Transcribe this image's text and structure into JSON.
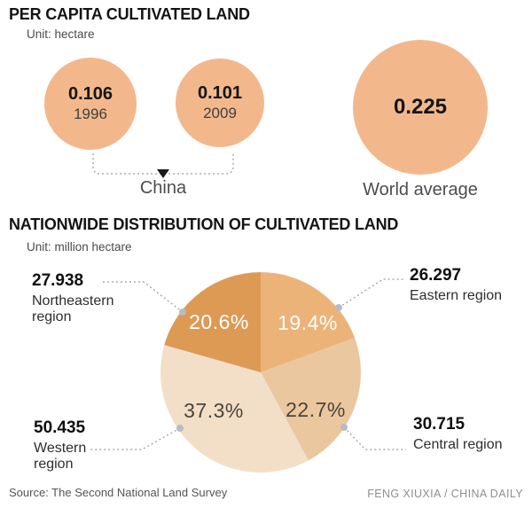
{
  "section1": {
    "title": "PER CAPITA CULTIVATED LAND",
    "unit": "Unit: hectare",
    "china_label": "China",
    "world_label": "World average",
    "circle_color": "#f2b88c",
    "bubbles": [
      {
        "value": "0.106",
        "year": "1996"
      },
      {
        "value": "0.101",
        "year": "2009"
      },
      {
        "value": "0.225",
        "year": ""
      }
    ]
  },
  "section2": {
    "title": "NATIONWIDE DISTRIBUTION OF CULTIVATED LAND",
    "unit": "Unit: million hectare"
  },
  "footer": {
    "source": "Source: The Second National Land Survey",
    "credit": "FENG XIUXIA / CHINA DAILY"
  },
  "chart_data": [
    {
      "type": "bubble",
      "title": "PER CAPITA CULTIVATED LAND",
      "unit": "hectare",
      "points": [
        {
          "label": "China 1996",
          "value": 0.106
        },
        {
          "label": "China 2009",
          "value": 0.101
        },
        {
          "label": "World average",
          "value": 0.225
        }
      ]
    },
    {
      "type": "pie",
      "title": "NATIONWIDE DISTRIBUTION OF CULTIVATED LAND",
      "unit": "million hectare",
      "start": "top",
      "direction": "clockwise",
      "slices": [
        {
          "label": "Eastern region",
          "value": 26.297,
          "value_label": "26.297",
          "pct": 19.4,
          "pct_label": "19.4%",
          "color": "#ecb379",
          "pct_text_color": "#ffffff"
        },
        {
          "label": "Central region",
          "value": 30.715,
          "value_label": "30.715",
          "pct": 22.7,
          "pct_label": "22.7%",
          "color": "#eac79f",
          "pct_text_color": "#4b443c"
        },
        {
          "label": "Western region",
          "value": 50.435,
          "value_label": "50.435",
          "pct": 37.3,
          "pct_label": "37.3%",
          "color": "#f3dfc7",
          "pct_text_color": "#4b443c"
        },
        {
          "label": "Northeastern region",
          "value": 27.938,
          "value_label": "27.938",
          "pct": 20.6,
          "pct_label": "20.6%",
          "color": "#dc9a54",
          "pct_text_color": "#ffffff"
        }
      ]
    }
  ]
}
